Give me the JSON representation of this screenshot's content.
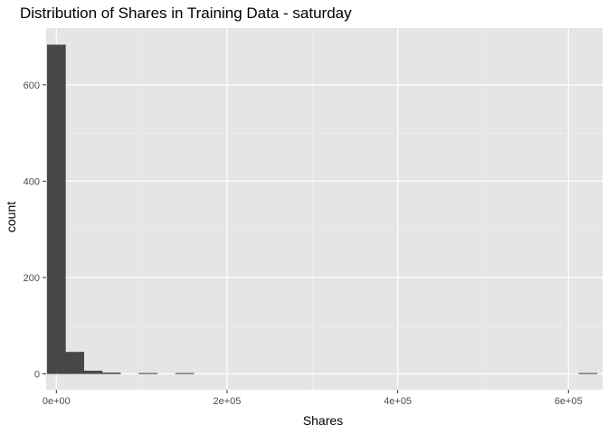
{
  "chart_data": {
    "type": "bar",
    "subtype": "histogram",
    "title": "Distribution of Shares in Training Data -  saturday",
    "xlabel": "Shares",
    "ylabel": "count",
    "xlim": [
      -12000,
      640000
    ],
    "ylim": [
      -33,
      718
    ],
    "x_ticks": [
      {
        "value": 0,
        "label": "0e+00"
      },
      {
        "value": 200000,
        "label": "2e+05"
      },
      {
        "value": 400000,
        "label": "4e+05"
      },
      {
        "value": 600000,
        "label": "6e+05"
      }
    ],
    "y_ticks": [
      {
        "value": 0,
        "label": "0"
      },
      {
        "value": 200,
        "label": "200"
      },
      {
        "value": 400,
        "label": "400"
      },
      {
        "value": 600,
        "label": "600"
      }
    ],
    "bin_start": -10740,
    "bin_width": 21480,
    "bins": [
      {
        "x_center": 0,
        "count": 683
      },
      {
        "x_center": 21480,
        "count": 45
      },
      {
        "x_center": 42960,
        "count": 6
      },
      {
        "x_center": 64440,
        "count": 2
      },
      {
        "x_center": 85920,
        "count": 0
      },
      {
        "x_center": 107400,
        "count": 1
      },
      {
        "x_center": 128880,
        "count": 0
      },
      {
        "x_center": 150360,
        "count": 1
      },
      {
        "x_center": 171840,
        "count": 0
      },
      {
        "x_center": 193320,
        "count": 0
      },
      {
        "x_center": 214800,
        "count": 0
      },
      {
        "x_center": 236280,
        "count": 0
      },
      {
        "x_center": 257760,
        "count": 0
      },
      {
        "x_center": 279240,
        "count": 0
      },
      {
        "x_center": 300720,
        "count": 0
      },
      {
        "x_center": 322200,
        "count": 0
      },
      {
        "x_center": 343680,
        "count": 0
      },
      {
        "x_center": 365160,
        "count": 0
      },
      {
        "x_center": 386640,
        "count": 0
      },
      {
        "x_center": 408120,
        "count": 0
      },
      {
        "x_center": 429600,
        "count": 0
      },
      {
        "x_center": 451080,
        "count": 0
      },
      {
        "x_center": 472560,
        "count": 0
      },
      {
        "x_center": 494040,
        "count": 0
      },
      {
        "x_center": 515520,
        "count": 0
      },
      {
        "x_center": 537000,
        "count": 0
      },
      {
        "x_center": 558480,
        "count": 0
      },
      {
        "x_center": 579960,
        "count": 0
      },
      {
        "x_center": 601440,
        "count": 0
      },
      {
        "x_center": 622920,
        "count": 1
      }
    ],
    "colors": {
      "panel_background": "#e5e5e5",
      "grid_major": "#ffffff",
      "grid_minor": "#f2f2f2",
      "bar_fill": "#474747",
      "axis_tick": "#333333",
      "tick_label": "#4d4d4d"
    }
  }
}
